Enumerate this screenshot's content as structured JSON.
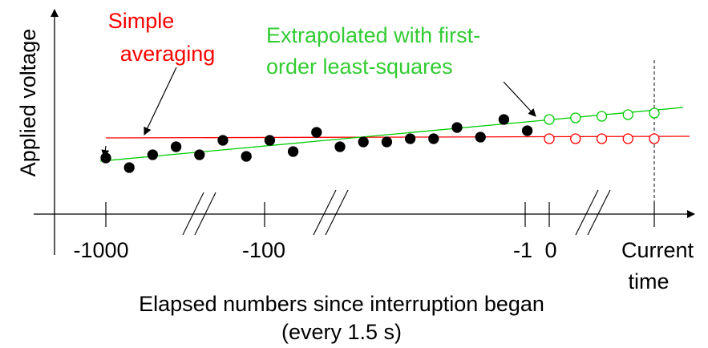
{
  "chart_data": {
    "type": "scatter",
    "title": "",
    "ylabel": "Applied voltage",
    "xlabel_lines": [
      "Elapsed numbers since interruption began",
      "(every 1.5 s)"
    ],
    "x_tick_labels": [
      "-1000",
      "-100",
      "-1",
      "0"
    ],
    "current_time_label_lines": [
      "Current",
      "time"
    ],
    "annotations": {
      "simple_averaging_lines": [
        "Simple",
        "averaging"
      ],
      "least_squares_lines": [
        "Extrapolated with first-",
        "order least-squares"
      ]
    },
    "colors": {
      "simple_averaging": "#ff0000",
      "least_squares": "#00cc00",
      "measured_points": "#000000",
      "axes": "#000000"
    },
    "measured_points": [
      {
        "x": 0,
        "y": 0.35
      },
      {
        "x": 1,
        "y": 0.29
      },
      {
        "x": 2,
        "y": 0.37
      },
      {
        "x": 3,
        "y": 0.42
      },
      {
        "x": 4,
        "y": 0.37
      },
      {
        "x": 5,
        "y": 0.46
      },
      {
        "x": 6,
        "y": 0.36
      },
      {
        "x": 7,
        "y": 0.46
      },
      {
        "x": 8,
        "y": 0.39
      },
      {
        "x": 9,
        "y": 0.51
      },
      {
        "x": 10,
        "y": 0.42
      },
      {
        "x": 11,
        "y": 0.45
      },
      {
        "x": 12,
        "y": 0.45
      },
      {
        "x": 13,
        "y": 0.47
      },
      {
        "x": 14,
        "y": 0.47
      },
      {
        "x": 15,
        "y": 0.54
      },
      {
        "x": 16,
        "y": 0.48
      },
      {
        "x": 17,
        "y": 0.59
      },
      {
        "x": 18,
        "y": 0.52
      }
    ],
    "extrapolated_least_squares": [
      {
        "x": 19,
        "y": 0.59
      },
      {
        "x": 20,
        "y": 0.6
      },
      {
        "x": 21,
        "y": 0.61
      },
      {
        "x": 22,
        "y": 0.62
      },
      {
        "x": 23,
        "y": 0.63
      }
    ],
    "extrapolated_simple_average": [
      {
        "x": 19,
        "y": 0.47
      },
      {
        "x": 20,
        "y": 0.47
      },
      {
        "x": 21,
        "y": 0.47
      },
      {
        "x": 22,
        "y": 0.47
      },
      {
        "x": 23,
        "y": 0.47
      }
    ]
  }
}
